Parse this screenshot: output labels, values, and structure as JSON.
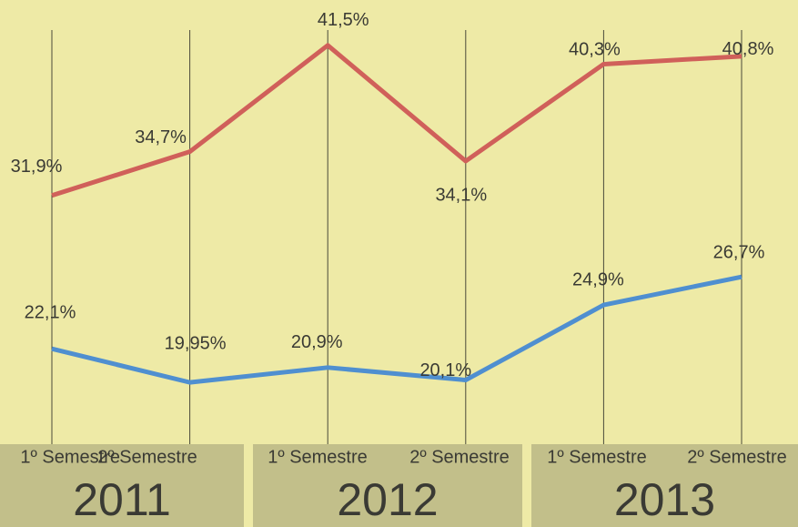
{
  "chart_data": {
    "type": "line",
    "categories": [
      "1º Semestre",
      "2º Semestre",
      "1º Semestre",
      "2º Semestre",
      "1º Semestre",
      "2º Semestre"
    ],
    "year_labels": [
      "2011",
      "2012",
      "2013"
    ],
    "series": [
      {
        "color": "#d0605a",
        "values": [
          31.9,
          34.7,
          41.5,
          34.1,
          40.3,
          40.8
        ],
        "value_labels": [
          "31,9%",
          "34,7%",
          "41,5%",
          "34,1%",
          "40,3%",
          "40,8%"
        ]
      },
      {
        "color": "#4f8fd0",
        "values": [
          22.1,
          19.95,
          20.9,
          20.1,
          24.9,
          26.7
        ],
        "value_labels": [
          "22,1%",
          "19,95%",
          "20,9%",
          "20,1%",
          "24,9%",
          "26,7%"
        ]
      }
    ],
    "ylim": [
      16,
      44.4
    ],
    "grid": false
  }
}
